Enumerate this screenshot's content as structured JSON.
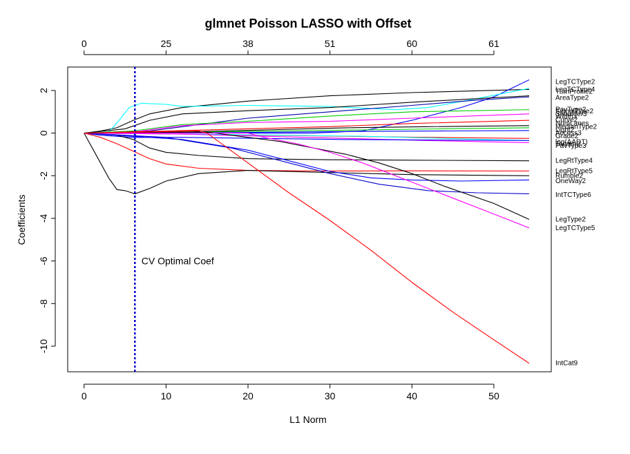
{
  "chart_data": {
    "type": "line",
    "title": "glmnet Poisson LASSO with Offset",
    "xlabel": "L1 Norm",
    "ylabel": "Coefficients",
    "xlim": [
      -2,
      57
    ],
    "ylim": [
      -11.2,
      3.1
    ],
    "x_ticks": [
      0,
      10,
      20,
      30,
      40,
      50
    ],
    "y_ticks": [
      2,
      0,
      -2,
      -4,
      -6,
      -8,
      -10
    ],
    "top_axis": {
      "positions": [
        0,
        10,
        20,
        30,
        40,
        50
      ],
      "labels": [
        "0",
        "25",
        "38",
        "51",
        "60",
        "61"
      ]
    },
    "vline": {
      "x": 6.2,
      "color": "#0000cc",
      "style": "dotted"
    },
    "annotation": {
      "text": "CV Optimal Coef",
      "x": 7,
      "y": -6
    },
    "grid": false,
    "series": [
      {
        "name": "LegTCType2",
        "color": "#000000",
        "points": [
          [
            0,
            0
          ],
          [
            2,
            0.1
          ],
          [
            4,
            0.25
          ],
          [
            6,
            0.6
          ],
          [
            8,
            0.9
          ],
          [
            12,
            1.2
          ],
          [
            20,
            1.5
          ],
          [
            30,
            1.75
          ],
          [
            40,
            1.9
          ],
          [
            54.3,
            2.05
          ]
        ]
      },
      {
        "name": "",
        "color": "#0000ff",
        "points": [
          [
            0,
            0
          ],
          [
            20,
            0
          ],
          [
            28,
            0
          ],
          [
            34,
            0.1
          ],
          [
            40,
            0.6
          ],
          [
            46,
            1.2
          ],
          [
            50,
            1.7
          ],
          [
            54.3,
            2.5
          ]
        ]
      },
      {
        "name": "",
        "color": "#00ffff",
        "points": [
          [
            0,
            0
          ],
          [
            3,
            0.05
          ],
          [
            4.5,
            0.7
          ],
          [
            5.5,
            1.2
          ],
          [
            7,
            1.4
          ],
          [
            10,
            1.35
          ],
          [
            12,
            1.25
          ],
          [
            20,
            1.3
          ],
          [
            30,
            1.25
          ],
          [
            38,
            1.1
          ],
          [
            42,
            1.2
          ],
          [
            47,
            1.55
          ],
          [
            54.3,
            2.1
          ]
        ]
      },
      {
        "name": "AreaType2",
        "color": "#000000",
        "points": [
          [
            0,
            0
          ],
          [
            5,
            0.2
          ],
          [
            8,
            0.6
          ],
          [
            12,
            0.9
          ],
          [
            20,
            1.05
          ],
          [
            30,
            1.2
          ],
          [
            40,
            1.45
          ],
          [
            54.3,
            1.75
          ]
        ]
      },
      {
        "name": "",
        "color": "#0000aa",
        "points": [
          [
            0,
            0
          ],
          [
            8,
            0.1
          ],
          [
            14,
            0.4
          ],
          [
            20,
            0.7
          ],
          [
            30,
            1
          ],
          [
            40,
            1.3
          ],
          [
            48,
            1.55
          ],
          [
            54.3,
            1.7
          ]
        ]
      },
      {
        "name": "",
        "color": "#00cc00",
        "points": [
          [
            0,
            0
          ],
          [
            6,
            0.1
          ],
          [
            12,
            0.4
          ],
          [
            22,
            0.6
          ],
          [
            30,
            0.8
          ],
          [
            40,
            1.0
          ],
          [
            54.3,
            1.1
          ]
        ]
      },
      {
        "name": "",
        "color": "#ff00ff",
        "points": [
          [
            0,
            0
          ],
          [
            6,
            0.05
          ],
          [
            12,
            0.35
          ],
          [
            20,
            0.5
          ],
          [
            30,
            0.55
          ],
          [
            40,
            0.7
          ],
          [
            54.3,
            0.9
          ]
        ]
      },
      {
        "name": "",
        "color": "#ff0000",
        "points": [
          [
            0,
            0
          ],
          [
            10,
            0.1
          ],
          [
            20,
            0.2
          ],
          [
            30,
            0.3
          ],
          [
            40,
            0.45
          ],
          [
            54.3,
            0.6
          ]
        ]
      },
      {
        "name": "",
        "color": "#000000",
        "points": [
          [
            0,
            0
          ],
          [
            12,
            0.05
          ],
          [
            22,
            0.15
          ],
          [
            32,
            0.25
          ],
          [
            42,
            0.3
          ],
          [
            54.3,
            0.35
          ]
        ]
      },
      {
        "name": "",
        "color": "#00cc00",
        "points": [
          [
            0,
            0
          ],
          [
            14,
            0.05
          ],
          [
            24,
            0.1
          ],
          [
            34,
            0.15
          ],
          [
            44,
            0.2
          ],
          [
            54.3,
            0.25
          ]
        ]
      },
      {
        "name": "",
        "color": "#0000ff",
        "points": [
          [
            0,
            0
          ],
          [
            15,
            0.02
          ],
          [
            25,
            0.05
          ],
          [
            35,
            0.08
          ],
          [
            45,
            0.1
          ],
          [
            54.3,
            0.12
          ]
        ]
      },
      {
        "name": "",
        "color": "#ff0000",
        "points": [
          [
            0,
            0
          ],
          [
            12,
            -0.05
          ],
          [
            22,
            -0.1
          ],
          [
            32,
            -0.15
          ],
          [
            42,
            -0.2
          ],
          [
            54.3,
            -0.25
          ]
        ]
      },
      {
        "name": "",
        "color": "#00ffff",
        "points": [
          [
            0,
            0
          ],
          [
            14,
            -0.05
          ],
          [
            24,
            -0.1
          ],
          [
            34,
            -0.15
          ],
          [
            44,
            -0.25
          ],
          [
            54.3,
            -0.35
          ]
        ]
      },
      {
        "name": "",
        "color": "#ff00ff",
        "points": [
          [
            0,
            0
          ],
          [
            12,
            -0.05
          ],
          [
            22,
            -0.15
          ],
          [
            32,
            -0.25
          ],
          [
            42,
            -0.35
          ],
          [
            54.3,
            -0.45
          ]
        ]
      },
      {
        "name": "",
        "color": "#0000ff",
        "points": [
          [
            0,
            0
          ],
          [
            2,
            -0.1
          ],
          [
            6,
            -0.2
          ],
          [
            12,
            -0.2
          ],
          [
            22,
            -0.25
          ],
          [
            32,
            -0.3
          ],
          [
            54.3,
            -0.35
          ]
        ]
      },
      {
        "name": "LegRtType4",
        "color": "#000000",
        "points": [
          [
            0,
            0
          ],
          [
            4,
            -0.1
          ],
          [
            6,
            -0.3
          ],
          [
            8,
            -0.7
          ],
          [
            10,
            -0.9
          ],
          [
            14,
            -1.05
          ],
          [
            20,
            -1.2
          ],
          [
            30,
            -1.25
          ],
          [
            40,
            -1.27
          ],
          [
            54.3,
            -1.3
          ]
        ]
      },
      {
        "name": "LegRtType5",
        "color": "#ff0000",
        "points": [
          [
            0,
            0
          ],
          [
            2,
            -0.2
          ],
          [
            4,
            -0.5
          ],
          [
            6,
            -0.85
          ],
          [
            8,
            -1.2
          ],
          [
            10,
            -1.45
          ],
          [
            14,
            -1.65
          ],
          [
            20,
            -1.75
          ],
          [
            30,
            -1.78
          ],
          [
            40,
            -1.77
          ],
          [
            54.3,
            -1.78
          ]
        ]
      },
      {
        "name": "Rumble2",
        "color": "#000000",
        "points": [
          [
            0,
            0
          ],
          [
            1,
            -0.7
          ],
          [
            2,
            -1.4
          ],
          [
            3,
            -2.1
          ],
          [
            4,
            -2.65
          ],
          [
            5,
            -2.7
          ],
          [
            6.2,
            -2.85
          ],
          [
            8,
            -2.6
          ],
          [
            10,
            -2.25
          ],
          [
            14,
            -1.9
          ],
          [
            20,
            -1.75
          ],
          [
            30,
            -1.85
          ],
          [
            40,
            -1.95
          ],
          [
            54.3,
            -2.0
          ]
        ]
      },
      {
        "name": "OneWay2",
        "color": "#0000ff",
        "points": [
          [
            0,
            0
          ],
          [
            12,
            -0.3
          ],
          [
            20,
            -0.8
          ],
          [
            25,
            -1.3
          ],
          [
            30,
            -1.8
          ],
          [
            35,
            -2.1
          ],
          [
            40,
            -2.2
          ],
          [
            46,
            -2.25
          ],
          [
            54.3,
            -2.2
          ]
        ]
      },
      {
        "name": "IntTCType6",
        "color": "#0000cc",
        "points": [
          [
            0,
            0
          ],
          [
            10,
            -0.2
          ],
          [
            18,
            -0.7
          ],
          [
            24,
            -1.3
          ],
          [
            30,
            -1.9
          ],
          [
            36,
            -2.4
          ],
          [
            42,
            -2.7
          ],
          [
            48,
            -2.8
          ],
          [
            54.3,
            -2.85
          ]
        ]
      },
      {
        "name": "LegType2",
        "color": "#000000",
        "points": [
          [
            0,
            0
          ],
          [
            15,
            0.05
          ],
          [
            20,
            -0.2
          ],
          [
            24,
            -0.4
          ],
          [
            28,
            -0.7
          ],
          [
            32,
            -1.0
          ],
          [
            36,
            -1.4
          ],
          [
            40,
            -1.9
          ],
          [
            44,
            -2.5
          ],
          [
            50,
            -3.3
          ],
          [
            54.3,
            -4.05
          ]
        ]
      },
      {
        "name": "LegTCType5",
        "color": "#ff00ff",
        "points": [
          [
            0,
            0
          ],
          [
            20,
            0
          ],
          [
            22,
            -0.2
          ],
          [
            26,
            -0.5
          ],
          [
            30,
            -0.9
          ],
          [
            34,
            -1.4
          ],
          [
            38,
            -2.0
          ],
          [
            42,
            -2.6
          ],
          [
            46,
            -3.2
          ],
          [
            50,
            -3.8
          ],
          [
            54.3,
            -4.45
          ]
        ]
      },
      {
        "name": "IntCat9",
        "color": "#ff0000",
        "points": [
          [
            0,
            0
          ],
          [
            14,
            0.1
          ],
          [
            15,
            0
          ],
          [
            20,
            -1.4
          ],
          [
            25,
            -2.8
          ],
          [
            30,
            -4.1
          ],
          [
            35,
            -5.5
          ],
          [
            40,
            -7.0
          ],
          [
            45,
            -8.4
          ],
          [
            50,
            -9.7
          ],
          [
            54.3,
            -10.8
          ]
        ]
      }
    ],
    "right_labels": [
      {
        "text": "LegTCType2",
        "y": 2.4
      },
      {
        "text": "LegTCType4",
        "y": 2.05
      },
      {
        "text": "TurnProfile2",
        "y": 1.95
      },
      {
        "text": "AreaType2",
        "y": 1.65
      },
      {
        "text": "PavType2",
        "y": 1.1
      },
      {
        "text": "SignalType2",
        "y": 1.02
      },
      {
        "text": "Shoulder3",
        "y": 0.9
      },
      {
        "text": "Width3",
        "y": 0.78
      },
      {
        "text": "Curve2",
        "y": 0.62
      },
      {
        "text": "NumLanes",
        "y": 0.45
      },
      {
        "text": "MedianType2",
        "y": 0.3
      },
      {
        "text": "Light2",
        "y": 0.15
      },
      {
        "text": "Access3",
        "y": 0.0
      },
      {
        "text": "Grade2",
        "y": -0.15
      },
      {
        "text": "log(AADT)",
        "y": -0.42
      },
      {
        "text": "Terrain2",
        "y": -0.52
      },
      {
        "text": "PavType3",
        "y": -0.6
      },
      {
        "text": "LegRtType4",
        "y": -1.3
      },
      {
        "text": "LegRtType5",
        "y": -1.78
      },
      {
        "text": "Rumble2",
        "y": -2.0
      },
      {
        "text": "OneWay2",
        "y": -2.25
      },
      {
        "text": "IntTCType6",
        "y": -2.9
      },
      {
        "text": "LegType2",
        "y": -4.05
      },
      {
        "text": "LegTCType5",
        "y": -4.45
      },
      {
        "text": "IntCat9",
        "y": -10.8
      }
    ]
  }
}
